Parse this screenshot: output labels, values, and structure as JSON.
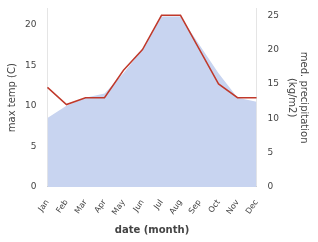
{
  "chart_data": {
    "type": "line",
    "xlabel": "date (month)",
    "ylabel": "max temp (C)",
    "y2label": "med. precipitation\n(kg/m2)",
    "categories": [
      "Jan",
      "Feb",
      "Mar",
      "Apr",
      "May",
      "Jun",
      "Jul",
      "Aug",
      "Sep",
      "Oct",
      "Nov",
      "Dec"
    ],
    "series": [
      {
        "type": "area",
        "color": "#c8d4f0",
        "values": [
          8.5,
          10.0,
          11.0,
          11.5,
          14.0,
          17.0,
          21.0,
          21.0,
          17.5,
          14.0,
          11.0,
          10.5
        ]
      },
      {
        "type": "line",
        "color": "#c0392b",
        "axis": "y2",
        "values": [
          14.5,
          12.0,
          13.0,
          13.0,
          17.0,
          20.0,
          25.0,
          25.0,
          20.0,
          15.0,
          13.0,
          13.0
        ]
      }
    ],
    "ylim": [
      0,
      22
    ],
    "yticks": [
      0,
      5,
      10,
      15,
      20
    ],
    "y2lim": [
      0,
      26
    ],
    "y2ticks": [
      0,
      5,
      10,
      15,
      20,
      25
    ],
    "grid": false
  }
}
